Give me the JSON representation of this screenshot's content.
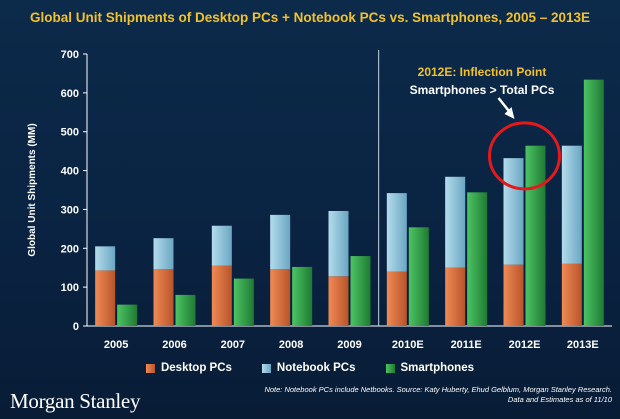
{
  "chart_data": {
    "type": "bar",
    "title": "Global Unit Shipments of Desktop PCs + Notebook PCs vs. Smartphones, 2005 – 2013E",
    "ylabel": "Global Unit Shipments (MM)",
    "xlabel": "",
    "ylim": [
      0,
      700
    ],
    "yticks": [
      0,
      100,
      200,
      300,
      400,
      500,
      600,
      700
    ],
    "categories": [
      "2005",
      "2006",
      "2007",
      "2008",
      "2009",
      "2010E",
      "2011E",
      "2012E",
      "2013E"
    ],
    "series": [
      {
        "name": "Desktop PCs",
        "stack": "pc",
        "color": "#e0703c",
        "values": [
          143,
          146,
          155,
          146,
          128,
          140,
          150,
          158,
          160
        ]
      },
      {
        "name": "Notebook PCs",
        "stack": "pc",
        "color": "#8cc4dc",
        "values": [
          62,
          80,
          103,
          140,
          168,
          202,
          234,
          274,
          304
        ]
      },
      {
        "name": "Smartphones",
        "stack": "phone",
        "color": "#2e9e47",
        "values": [
          55,
          80,
          122,
          152,
          180,
          254,
          344,
          464,
          634
        ]
      }
    ],
    "divider_after": "2009",
    "highlight_category": "2012E",
    "legend": [
      "Desktop PCs",
      "Notebook PCs",
      "Smartphones"
    ],
    "grid": false
  },
  "annotation": {
    "line1": "2012E: Inflection Point",
    "line2": "Smartphones > Total PCs"
  },
  "branding": {
    "logo_text": "Morgan Stanley"
  },
  "footnote": {
    "line1": "Note: Notebook PCs include Netbooks. Source: Katy Huberty, Ehud Gelblum, Morgan Stanley Research.",
    "line2": "Data and Estimates as of 11/10"
  },
  "colors": {
    "title": "#f2c12e",
    "desktop": "#e0703c",
    "notebook": "#8cc4dc",
    "smartphone": "#2e9e47",
    "highlight_circle": "#e31a1c"
  }
}
